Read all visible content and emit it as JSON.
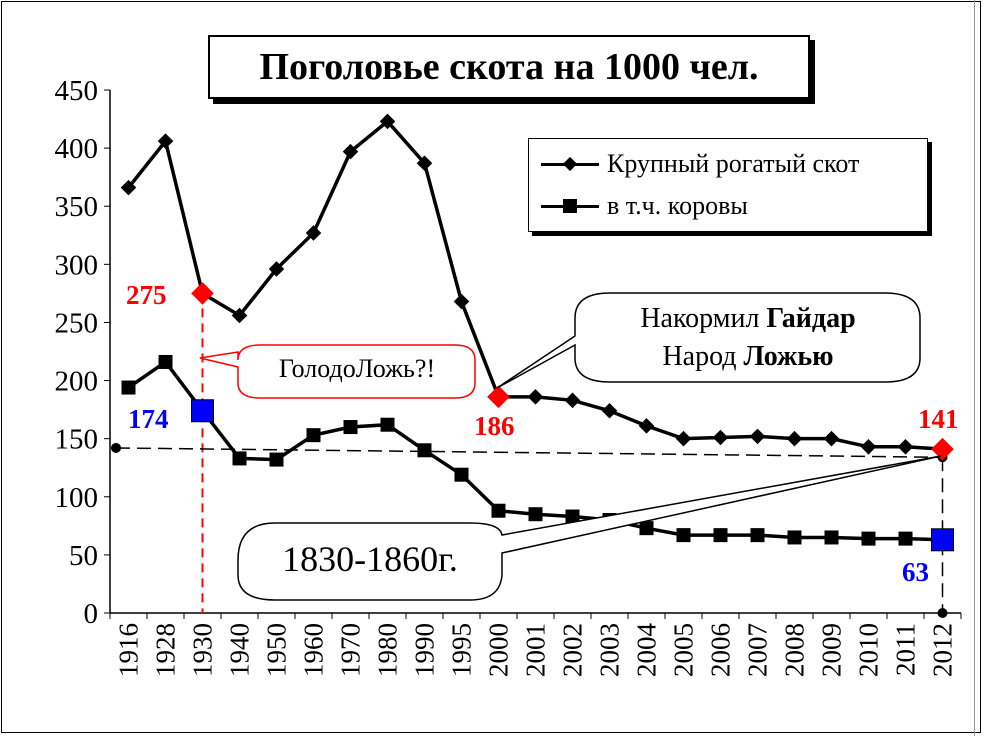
{
  "chart_data": {
    "type": "line",
    "title": "Поголовье скота на 1000 чел.",
    "categories": [
      "1916",
      "1928",
      "1930",
      "1940",
      "1950",
      "1960",
      "1970",
      "1980",
      "1990",
      "1995",
      "2000",
      "2001",
      "2002",
      "2003",
      "2004",
      "2005",
      "2006",
      "2007",
      "2008",
      "2009",
      "2010",
      "2011",
      "2012"
    ],
    "series": [
      {
        "name": "Крупный рогатый скот",
        "marker": "diamond",
        "values": [
          366,
          406,
          275,
          256,
          296,
          327,
          397,
          423,
          387,
          268,
          186,
          186,
          183,
          174,
          161,
          150,
          151,
          152,
          150,
          150,
          143,
          143,
          141
        ]
      },
      {
        "name": "в т.ч. коровы",
        "marker": "square",
        "values": [
          194,
          216,
          174,
          133,
          132,
          153,
          160,
          162,
          140,
          119,
          88,
          85,
          83,
          80,
          73,
          67,
          67,
          67,
          65,
          65,
          64,
          64,
          63
        ]
      }
    ],
    "ylim": [
      0,
      450
    ],
    "yticks": [
      "0",
      "50",
      "100",
      "150",
      "200",
      "250",
      "300",
      "350",
      "400",
      "450"
    ],
    "legend_position": "top-right",
    "highlight_labels": [
      {
        "category": "1930",
        "series": 0,
        "text": "275",
        "color": "#ff0000"
      },
      {
        "category": "1930",
        "series": 1,
        "text": "174",
        "color": "#0000ff"
      },
      {
        "category": "2000",
        "series": 0,
        "text": "186",
        "color": "#ff0000"
      },
      {
        "category": "2012",
        "series": 0,
        "text": "141",
        "color": "#ff0000"
      },
      {
        "category": "2012",
        "series": 1,
        "text": "63",
        "color": "#0000ff"
      }
    ],
    "reference_line": {
      "from": [
        1916,
        142
      ],
      "to": [
        2012,
        134
      ]
    }
  },
  "callouts": {
    "famine": "ГолодоЛожь?!",
    "gaidar_line1_a": "Накормил ",
    "gaidar_line1_b": "Гайдар",
    "gaidar_line2_a": "Народ ",
    "gaidar_line2_b": "Ложью",
    "era": "1830-1860г."
  },
  "colors": {
    "highlight_red": "#ff0000",
    "highlight_blue": "#0000ff",
    "line": "#000000"
  }
}
